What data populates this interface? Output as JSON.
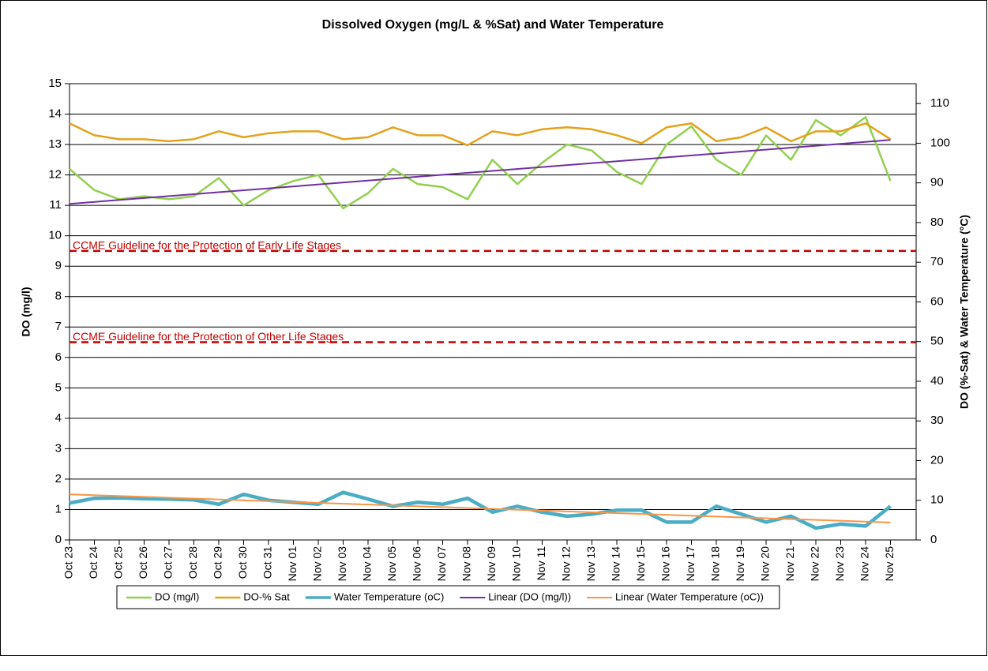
{
  "chart_data": {
    "type": "line",
    "title": "Dissolved Oxygen (mg/L & %Sat) and Water Temperature",
    "y_label": "DO (mg/l)",
    "y2_label": "DO (%-Sat) & Water Temperature (°C)",
    "categories": [
      "Oct 23",
      "Oct 24",
      "Oct 25",
      "Oct 26",
      "Oct 27",
      "Oct 28",
      "Oct 29",
      "Oct 30",
      "Oct 31",
      "Nov 01",
      "Nov 02",
      "Nov 03",
      "Nov 04",
      "Nov 05",
      "Nov 06",
      "Nov 07",
      "Nov 08",
      "Nov 09",
      "Nov 10",
      "Nov 11",
      "Nov 12",
      "Nov 13",
      "Nov 14",
      "Nov 15",
      "Nov 16",
      "Nov 17",
      "Nov 18",
      "Nov 19",
      "Nov 20",
      "Nov 21",
      "Nov 22",
      "Nov 23",
      "Nov 24",
      "Nov 25"
    ],
    "ylim": [
      0,
      15
    ],
    "yticks": [
      0,
      1,
      2,
      3,
      4,
      5,
      6,
      7,
      8,
      9,
      10,
      11,
      12,
      13,
      14,
      15
    ],
    "y2lim": [
      0,
      115
    ],
    "y2ticks": [
      0,
      10,
      20,
      30,
      40,
      50,
      60,
      70,
      80,
      90,
      100,
      110
    ],
    "grid": true,
    "legend": "bottom",
    "series": [
      {
        "name": "DO (mg/l)",
        "color": "#92d050",
        "width": 2.5,
        "values": [
          12.2,
          11.5,
          11.2,
          11.3,
          11.2,
          11.3,
          11.9,
          11.0,
          11.5,
          11.8,
          12.0,
          10.9,
          11.4,
          12.2,
          11.7,
          11.6,
          11.2,
          12.5,
          11.7,
          12.4,
          13.0,
          12.8,
          12.1,
          11.7,
          13.0,
          13.6,
          12.5,
          12.0,
          13.3,
          12.5,
          13.8,
          13.3,
          13.9,
          11.8
        ]
      },
      {
        "name": "DO-% Sat",
        "color": "#e3a21a",
        "width": 2.5,
        "axis": "y2",
        "values": [
          105,
          102,
          101,
          101,
          100.5,
          101,
          103,
          101.5,
          102.5,
          103,
          103,
          101,
          101.5,
          104,
          102,
          102,
          99.5,
          103,
          102,
          103.5,
          104,
          103.5,
          102,
          100,
          104,
          105,
          100.5,
          101.5,
          104,
          100.5,
          103,
          103,
          105,
          101
        ]
      },
      {
        "name": "Water Temperature (oC)",
        "color": "#4bacc6",
        "width": 4.5,
        "axis": "y2",
        "values": [
          9.3,
          10.5,
          10.6,
          10.4,
          10.3,
          10.1,
          9.0,
          11.5,
          10.0,
          9.5,
          9.0,
          12.0,
          10.3,
          8.5,
          9.5,
          9.0,
          10.5,
          7.0,
          8.5,
          7.0,
          6.0,
          6.5,
          7.5,
          7.5,
          4.5,
          4.5,
          8.5,
          6.5,
          4.5,
          6.0,
          3.0,
          4.0,
          3.5,
          8.5
        ]
      },
      {
        "name": "Linear (DO (mg/l))",
        "color": "#7030a0",
        "width": 2,
        "x": [
          "Oct 23",
          "Nov 25"
        ],
        "values": [
          11.05,
          13.15
        ]
      },
      {
        "name": "Linear (Water Temperature (oC))",
        "color": "#f79646",
        "width": 2,
        "axis": "y2",
        "x": [
          "Oct 23",
          "Nov 25"
        ],
        "values": [
          11.5,
          4.4
        ]
      }
    ],
    "annotations": [
      {
        "text": "CCME Guideline for the Protection of Early Life Stages",
        "y": 9.5,
        "color": "#c00000"
      },
      {
        "text": "CCME Guideline for the Protection of Other Life Stages",
        "y": 6.5,
        "color": "#c00000"
      }
    ]
  }
}
